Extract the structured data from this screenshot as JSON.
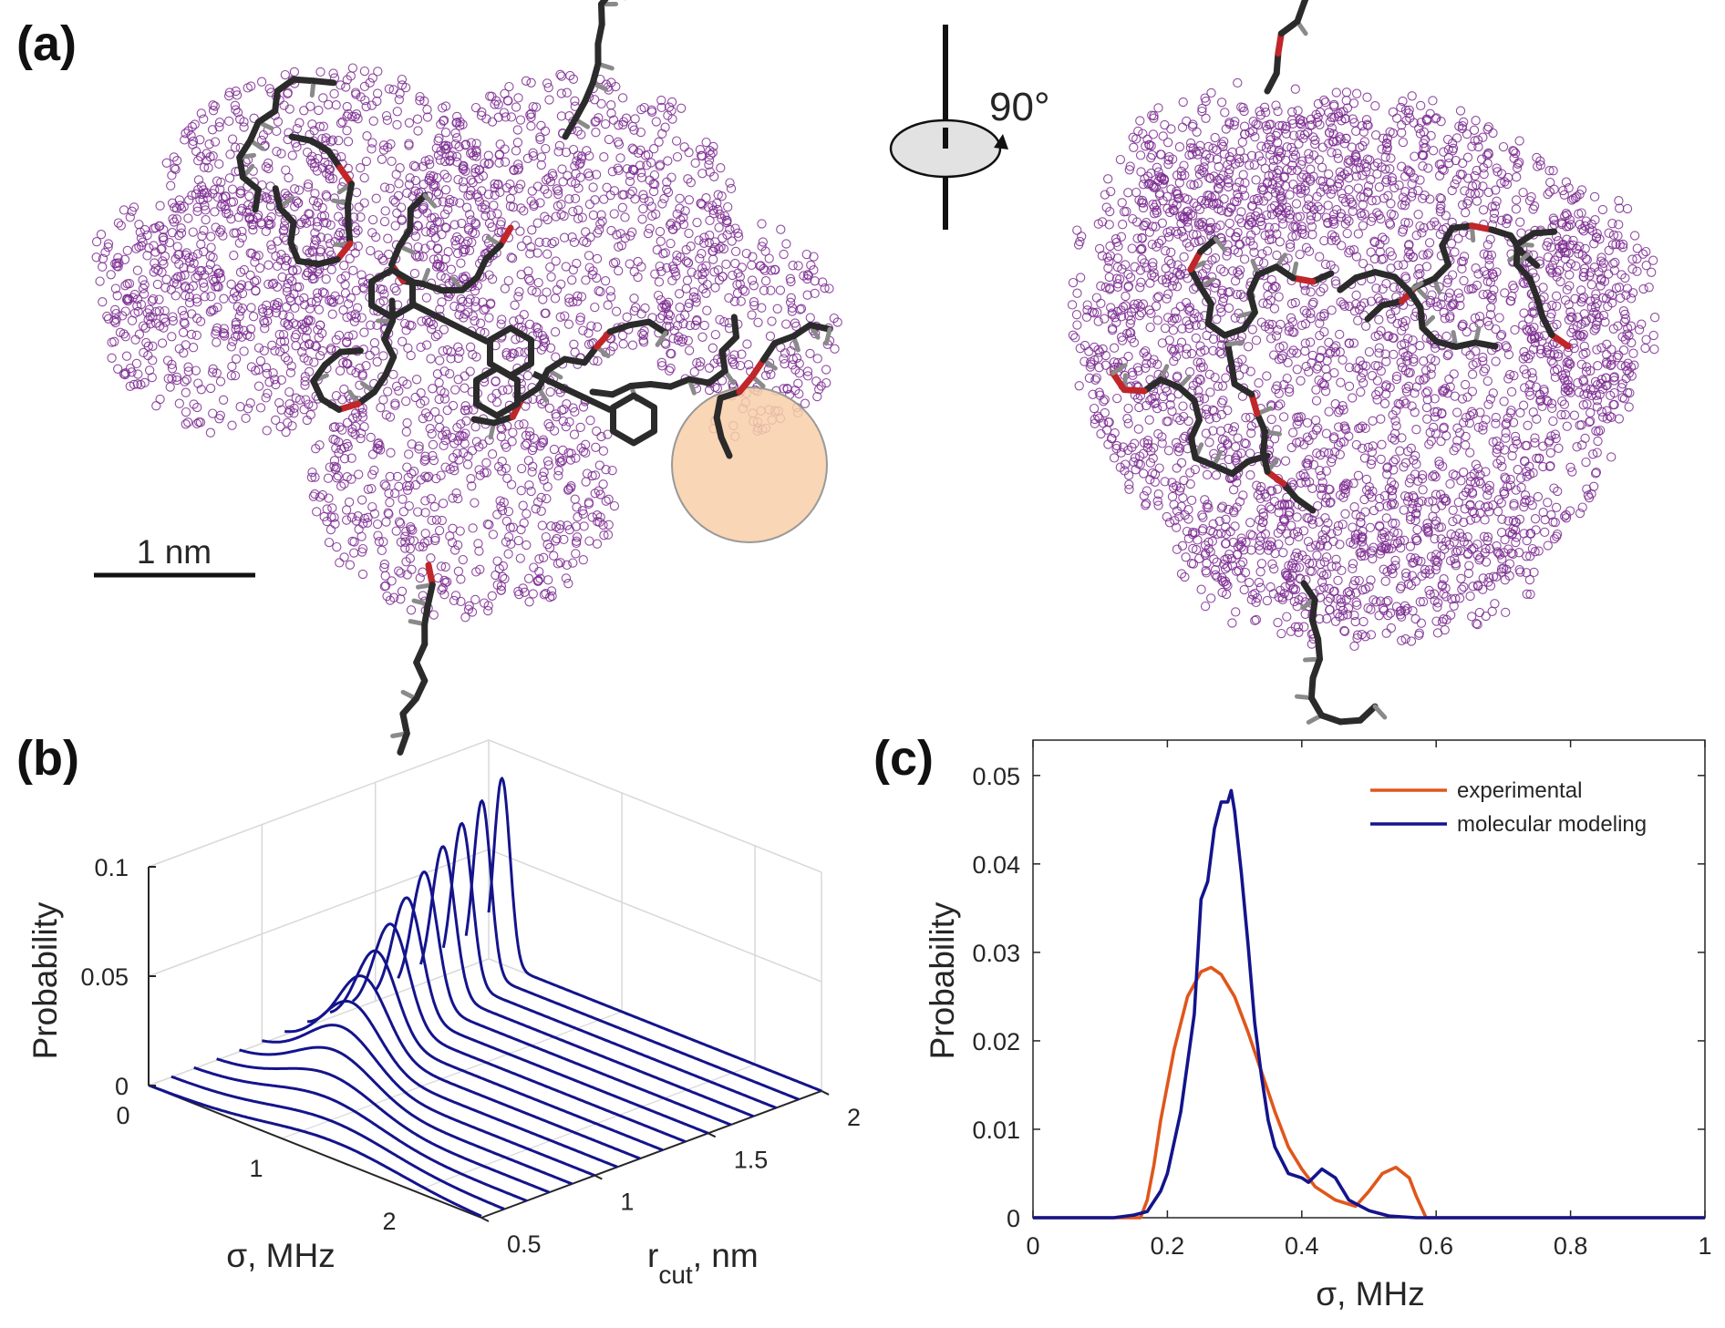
{
  "panels": {
    "a": {
      "label": "(a)",
      "scale_bar_label": "1 nm",
      "rotation_label": "90°",
      "atom_cloud_color": "#7b2a90",
      "highlight_color": "#f8cfa8",
      "bond_color": "#2b2b2b",
      "oxygen_color": "#c0262a"
    },
    "b": {
      "label": "(b)"
    },
    "c": {
      "label": "(c)"
    }
  },
  "chart_data": [
    {
      "type": "line",
      "subtype": "3d-waterfall",
      "xlabel": "σ, MHz",
      "ylabel": "r",
      "ylabel_sub": "cut",
      "ylabel_suffix": ", nm",
      "zlabel": "Probability",
      "xlim": [
        0,
        2.5
      ],
      "ylim": [
        0.5,
        2
      ],
      "zlim": [
        0,
        0.1
      ],
      "x_ticks": [
        "0",
        "1",
        "2"
      ],
      "y_ticks": [
        "0.5",
        "1",
        "1.5",
        "2"
      ],
      "z_ticks": [
        "0",
        "0.05",
        "0.1"
      ],
      "grid": true,
      "color": "#14148c",
      "series": [
        {
          "rcut": 0.5,
          "peak_sigma": 1.4,
          "peak_probability": 0.008,
          "width_sigma": 0.5
        },
        {
          "rcut": 0.6,
          "peak_sigma": 1.2,
          "peak_probability": 0.009,
          "width_sigma": 0.45
        },
        {
          "rcut": 0.7,
          "peak_sigma": 1.0,
          "peak_probability": 0.011,
          "width_sigma": 0.4
        },
        {
          "rcut": 0.8,
          "peak_sigma": 0.85,
          "peak_probability": 0.014,
          "width_sigma": 0.34
        },
        {
          "rcut": 0.9,
          "peak_sigma": 0.72,
          "peak_probability": 0.018,
          "width_sigma": 0.29
        },
        {
          "rcut": 1.0,
          "peak_sigma": 0.6,
          "peak_probability": 0.022,
          "width_sigma": 0.25
        },
        {
          "rcut": 1.1,
          "peak_sigma": 0.5,
          "peak_probability": 0.027,
          "width_sigma": 0.21
        },
        {
          "rcut": 1.2,
          "peak_sigma": 0.42,
          "peak_probability": 0.033,
          "width_sigma": 0.18
        },
        {
          "rcut": 1.3,
          "peak_sigma": 0.35,
          "peak_probability": 0.039,
          "width_sigma": 0.15
        },
        {
          "rcut": 1.4,
          "peak_sigma": 0.29,
          "peak_probability": 0.046,
          "width_sigma": 0.13
        },
        {
          "rcut": 1.5,
          "peak_sigma": 0.24,
          "peak_probability": 0.053,
          "width_sigma": 0.11
        },
        {
          "rcut": 1.6,
          "peak_sigma": 0.2,
          "peak_probability": 0.06,
          "width_sigma": 0.095
        },
        {
          "rcut": 1.7,
          "peak_sigma": 0.17,
          "peak_probability": 0.067,
          "width_sigma": 0.085
        },
        {
          "rcut": 1.8,
          "peak_sigma": 0.14,
          "peak_probability": 0.073,
          "width_sigma": 0.075
        },
        {
          "rcut": 1.9,
          "peak_sigma": 0.12,
          "peak_probability": 0.079,
          "width_sigma": 0.065
        },
        {
          "rcut": 2.0,
          "peak_sigma": 0.1,
          "peak_probability": 0.085,
          "width_sigma": 0.06
        }
      ]
    },
    {
      "type": "line",
      "xlabel": "σ, MHz",
      "ylabel": "Probability",
      "xlim": [
        0,
        1
      ],
      "ylim": [
        0,
        0.054
      ],
      "x_ticks": [
        "0",
        "0.2",
        "0.4",
        "0.6",
        "0.8",
        "1"
      ],
      "y_ticks": [
        "0",
        "0.01",
        "0.02",
        "0.03",
        "0.04",
        "0.05"
      ],
      "legend": "top-right",
      "series": [
        {
          "name": "experimental",
          "color": "#e0561c",
          "x": [
            0,
            0.16,
            0.17,
            0.18,
            0.19,
            0.21,
            0.23,
            0.25,
            0.265,
            0.28,
            0.3,
            0.32,
            0.34,
            0.36,
            0.38,
            0.4,
            0.42,
            0.45,
            0.48,
            0.5,
            0.52,
            0.54,
            0.56,
            0.57,
            0.585,
            1
          ],
          "y": [
            0,
            0,
            0.002,
            0.006,
            0.011,
            0.019,
            0.025,
            0.0278,
            0.0283,
            0.0275,
            0.025,
            0.021,
            0.0165,
            0.012,
            0.008,
            0.0055,
            0.0035,
            0.002,
            0.0013,
            0.003,
            0.005,
            0.0057,
            0.0045,
            0.0025,
            0,
            0
          ]
        },
        {
          "name": "molecular modeling",
          "color": "#14148c",
          "x": [
            0,
            0.12,
            0.15,
            0.17,
            0.19,
            0.2,
            0.22,
            0.24,
            0.25,
            0.26,
            0.27,
            0.28,
            0.29,
            0.295,
            0.3,
            0.31,
            0.32,
            0.33,
            0.34,
            0.35,
            0.36,
            0.37,
            0.38,
            0.4,
            0.41,
            0.43,
            0.45,
            0.47,
            0.5,
            0.53,
            0.57,
            1
          ],
          "y": [
            0,
            0,
            0.0003,
            0.0007,
            0.003,
            0.005,
            0.012,
            0.023,
            0.036,
            0.038,
            0.044,
            0.047,
            0.047,
            0.0483,
            0.046,
            0.039,
            0.031,
            0.022,
            0.016,
            0.011,
            0.008,
            0.0065,
            0.005,
            0.0045,
            0.004,
            0.0055,
            0.0045,
            0.002,
            0.0008,
            0.0002,
            0,
            0
          ]
        }
      ]
    }
  ]
}
